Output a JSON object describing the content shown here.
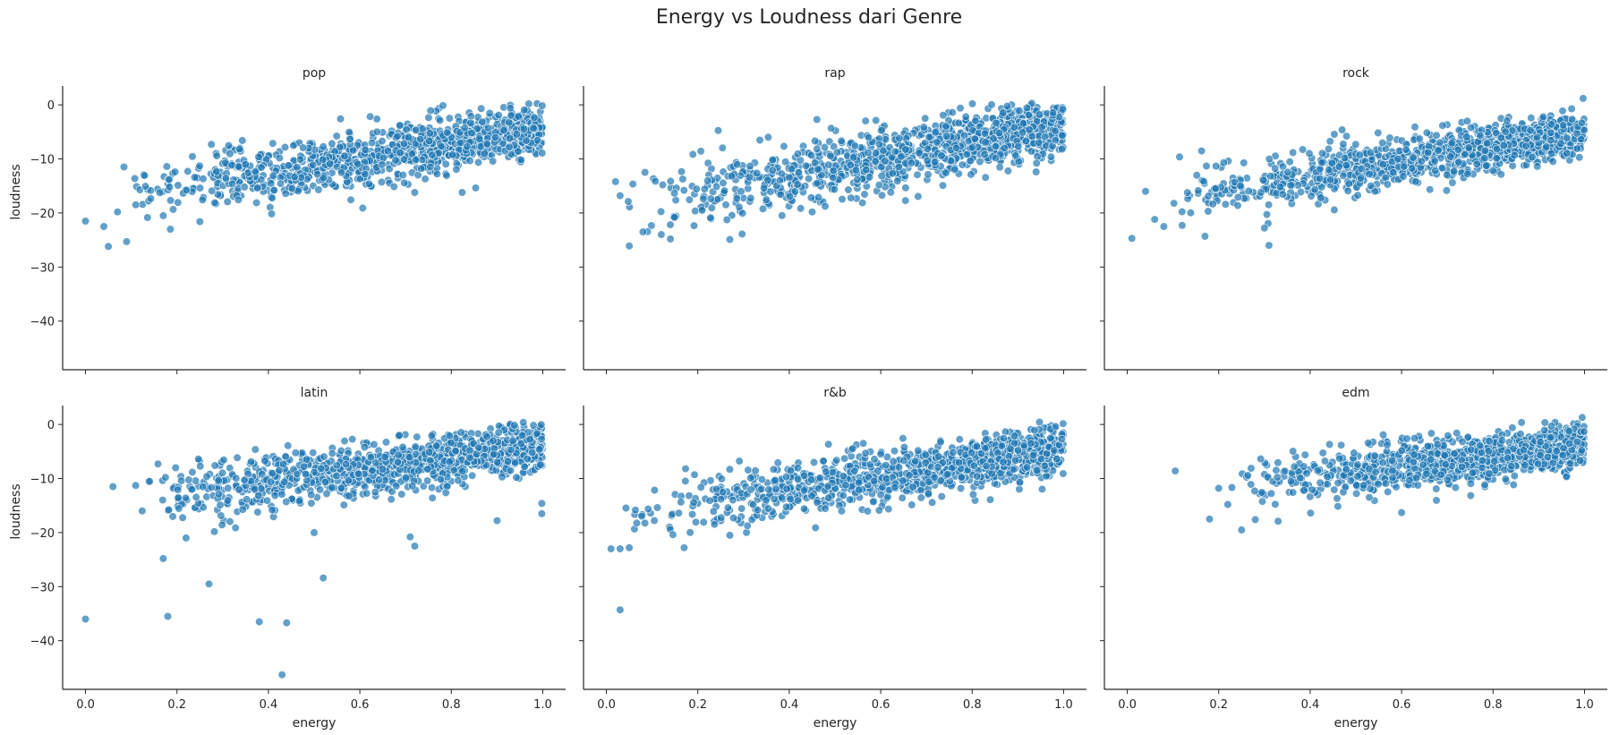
{
  "chart_data": {
    "type": "scatter",
    "title": "Energy vs Loudness dari Genre",
    "xlabel": "energy",
    "ylabel": "loudness",
    "xlim": [
      -0.05,
      1.05
    ],
    "ylim": [
      -49,
      3.5
    ],
    "xticks": [
      0.0,
      0.2,
      0.4,
      0.6,
      0.8,
      1.0
    ],
    "xtick_labels": [
      "0.0",
      "0.2",
      "0.4",
      "0.6",
      "0.8",
      "1.0"
    ],
    "yticks": [
      0,
      -10,
      -20,
      -30,
      -40
    ],
    "ytick_labels": [
      "0",
      "−10",
      "−20",
      "−30",
      "−40"
    ],
    "marker_color": "#1f77b4",
    "marker_alpha": 0.7,
    "grid": false,
    "panels": [
      {
        "genre": "pop",
        "trend": {
          "e0": 0.05,
          "e1": 1.0,
          "l0": -17,
          "l1": -4.5,
          "spread": 2.6,
          "emin": 0.05
        },
        "outliers": [
          [
            0.0,
            -21.5
          ],
          [
            0.04,
            -22.5
          ],
          [
            0.05,
            -26.2
          ],
          [
            0.09,
            -25.3
          ],
          [
            0.07,
            -19.8
          ],
          [
            0.11,
            -18.5
          ],
          [
            0.17,
            -20.5
          ],
          [
            0.25,
            -21.6
          ],
          [
            0.72,
            -16.2
          ]
        ]
      },
      {
        "genre": "rap",
        "trend": {
          "e0": 0.04,
          "e1": 1.0,
          "l0": -19,
          "l1": -3.5,
          "spread": 3.0,
          "emin": 0.03
        },
        "outliers": [
          [
            0.02,
            -14.2
          ],
          [
            0.05,
            -26.1
          ],
          [
            0.03,
            -16.8
          ],
          [
            0.08,
            -23.5
          ],
          [
            0.12,
            -24.0
          ],
          [
            0.14,
            -24.8
          ],
          [
            0.27,
            -24.9
          ],
          [
            0.45,
            -19.8
          ]
        ]
      },
      {
        "genre": "rock",
        "trend": {
          "e0": 0.1,
          "e1": 1.0,
          "l0": -17,
          "l1": -5,
          "spread": 2.4,
          "emin": 0.08
        },
        "outliers": [
          [
            0.01,
            -24.7
          ],
          [
            0.06,
            -21.2
          ],
          [
            0.08,
            -22.5
          ],
          [
            0.12,
            -22.3
          ],
          [
            0.17,
            -24.3
          ],
          [
            0.31,
            -26.0
          ],
          [
            0.3,
            -22.8
          ],
          [
            0.04,
            -16.0
          ],
          [
            0.997,
            1.2
          ]
        ]
      },
      {
        "genre": "latin",
        "trend": {
          "e0": 0.1,
          "e1": 1.0,
          "l0": -14,
          "l1": -4,
          "spread": 2.6,
          "emin": 0.08
        },
        "outliers": [
          [
            0.0,
            -36.0
          ],
          [
            0.06,
            -11.5
          ],
          [
            0.17,
            -24.8
          ],
          [
            0.18,
            -35.5
          ],
          [
            0.27,
            -29.5
          ],
          [
            0.38,
            -36.5
          ],
          [
            0.44,
            -36.7
          ],
          [
            0.43,
            -46.3
          ],
          [
            0.52,
            -28.4
          ],
          [
            0.72,
            -22.5
          ],
          [
            0.71,
            -20.8
          ],
          [
            0.5,
            -20.0
          ],
          [
            0.22,
            -21.0
          ],
          [
            0.9,
            -17.8
          ],
          [
            0.998,
            -16.5
          ],
          [
            0.998,
            -14.6
          ]
        ]
      },
      {
        "genre": "r&b",
        "trend": {
          "e0": 0.04,
          "e1": 1.0,
          "l0": -17,
          "l1": -4.5,
          "spread": 2.6,
          "emin": 0.03
        },
        "outliers": [
          [
            0.01,
            -23.0
          ],
          [
            0.03,
            -23.0
          ],
          [
            0.05,
            -22.8
          ],
          [
            0.03,
            -34.3
          ],
          [
            0.17,
            -22.8
          ],
          [
            0.27,
            -20.5
          ]
        ]
      },
      {
        "genre": "edm",
        "trend": {
          "e0": 0.25,
          "e1": 1.0,
          "l0": -11,
          "l1": -4,
          "spread": 2.4,
          "emin": 0.22
        },
        "outliers": [
          [
            0.105,
            -8.6
          ],
          [
            0.18,
            -17.5
          ],
          [
            0.2,
            -11.8
          ],
          [
            0.22,
            -14.8
          ],
          [
            0.25,
            -19.5
          ],
          [
            0.28,
            -17.6
          ],
          [
            0.33,
            -17.9
          ],
          [
            0.6,
            -16.3
          ],
          [
            0.995,
            1.3
          ]
        ]
      }
    ]
  }
}
